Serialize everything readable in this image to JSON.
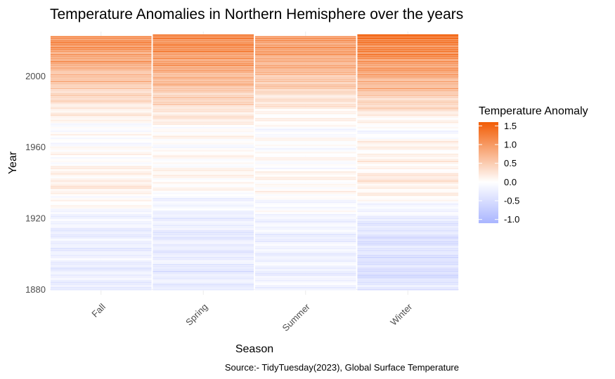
{
  "chart_data": {
    "type": "heatmap",
    "title": "Temperature Anomalies in Northern Hemisphere over the years",
    "xlabel": "Season",
    "ylabel": "Year",
    "caption": "Source:- TidyTuesday(2023), Global Surface Temperature",
    "categories": [
      "Fall",
      "Spring",
      "Summer",
      "Winter"
    ],
    "y_ticks": [
      1880,
      1920,
      1960,
      2000
    ],
    "ylim": [
      1877,
      2025
    ],
    "year_range": {
      "Fall": [
        1880,
        2022
      ],
      "Spring": [
        1880,
        2023
      ],
      "Summer": [
        1880,
        2022
      ],
      "Winter": [
        1880,
        2023
      ]
    },
    "legend": {
      "title": "Temperature Anomaly",
      "ticks": [
        "1.5",
        "1.0",
        "0.5",
        "0.0",
        "-0.5",
        "-1.0"
      ],
      "tick_values": [
        1.5,
        1.0,
        0.5,
        0.0,
        -0.5,
        -1.0
      ],
      "limits": [
        -1.1,
        1.6
      ],
      "low_color": "#a9b5ff",
      "mid_color": "#ffffff",
      "high_color": "#f25c05"
    },
    "series": [
      {
        "name": "Fall",
        "anchors": [
          [
            1880,
            -0.25
          ],
          [
            1890,
            -0.3
          ],
          [
            1900,
            -0.25
          ],
          [
            1910,
            -0.3
          ],
          [
            1920,
            -0.2
          ],
          [
            1930,
            0.05
          ],
          [
            1940,
            0.2
          ],
          [
            1950,
            0.05
          ],
          [
            1960,
            0.0
          ],
          [
            1970,
            -0.05
          ],
          [
            1980,
            0.2
          ],
          [
            1990,
            0.45
          ],
          [
            2000,
            0.7
          ],
          [
            2010,
            1.0
          ],
          [
            2022,
            1.3
          ]
        ]
      },
      {
        "name": "Spring",
        "anchors": [
          [
            1880,
            -0.3
          ],
          [
            1890,
            -0.35
          ],
          [
            1900,
            -0.3
          ],
          [
            1910,
            -0.35
          ],
          [
            1920,
            -0.25
          ],
          [
            1930,
            -0.15
          ],
          [
            1940,
            0.1
          ],
          [
            1950,
            0.05
          ],
          [
            1960,
            0.0
          ],
          [
            1970,
            0.05
          ],
          [
            1980,
            0.3
          ],
          [
            1990,
            0.55
          ],
          [
            2000,
            0.85
          ],
          [
            2010,
            1.1
          ],
          [
            2023,
            1.4
          ]
        ]
      },
      {
        "name": "Summer",
        "anchors": [
          [
            1880,
            -0.2
          ],
          [
            1890,
            -0.25
          ],
          [
            1900,
            -0.2
          ],
          [
            1910,
            -0.25
          ],
          [
            1920,
            -0.15
          ],
          [
            1930,
            -0.05
          ],
          [
            1940,
            0.1
          ],
          [
            1950,
            0.0
          ],
          [
            1960,
            0.0
          ],
          [
            1970,
            -0.05
          ],
          [
            1980,
            0.15
          ],
          [
            1990,
            0.4
          ],
          [
            2000,
            0.7
          ],
          [
            2010,
            0.95
          ],
          [
            2022,
            1.2
          ]
        ]
      },
      {
        "name": "Winter",
        "anchors": [
          [
            1880,
            -0.4
          ],
          [
            1890,
            -0.55
          ],
          [
            1900,
            -0.45
          ],
          [
            1910,
            -0.5
          ],
          [
            1920,
            -0.3
          ],
          [
            1930,
            0.0
          ],
          [
            1940,
            0.25
          ],
          [
            1950,
            0.1
          ],
          [
            1960,
            0.15
          ],
          [
            1970,
            -0.1
          ],
          [
            1980,
            0.3
          ],
          [
            1990,
            0.6
          ],
          [
            2000,
            0.95
          ],
          [
            2010,
            1.2
          ],
          [
            2023,
            1.6
          ]
        ]
      }
    ]
  }
}
